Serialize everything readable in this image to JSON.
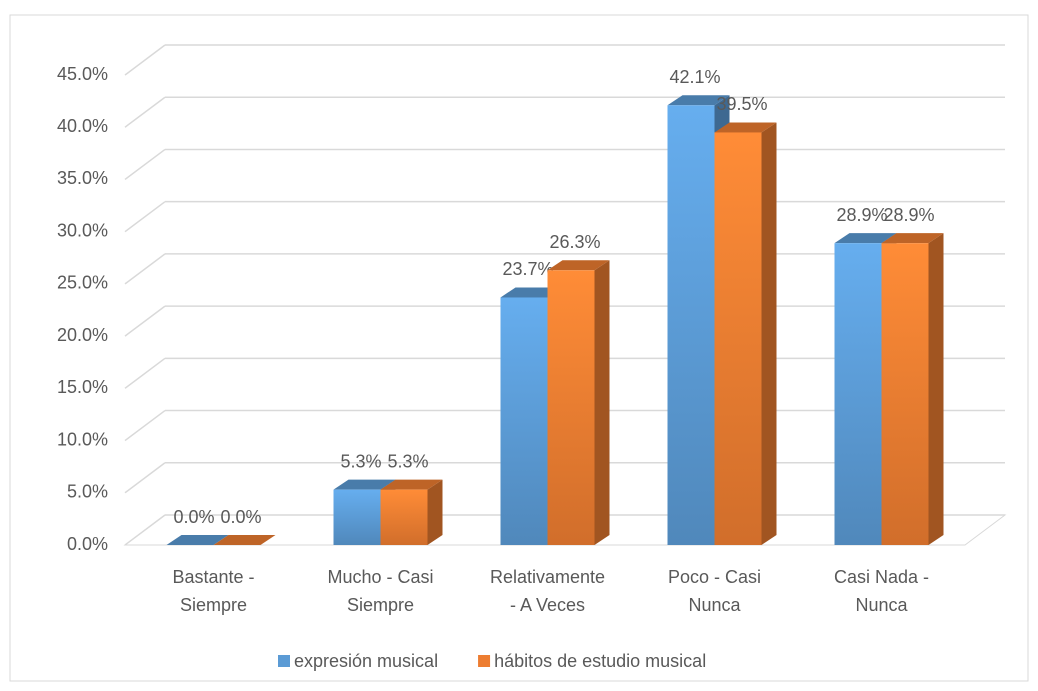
{
  "chart_data": {
    "type": "bar3d",
    "categories": [
      [
        "Bastante -",
        "Siempre"
      ],
      [
        "Mucho  - Casi",
        "Siempre"
      ],
      [
        "Relativamente",
        "- A Veces"
      ],
      [
        "Poco  - Casi",
        "Nunca"
      ],
      [
        "Casi Nada -",
        "Nunca"
      ]
    ],
    "series": [
      {
        "name": "expresión musical",
        "color": "#5b9bd5",
        "values": [
          0.0,
          5.3,
          23.7,
          42.1,
          28.9
        ],
        "value_labels": [
          "0.0%",
          "5.3%",
          "23.7%",
          "42.1%",
          "28.9%"
        ]
      },
      {
        "name": "hábitos de estudio musical",
        "color": "#ed7d31",
        "values": [
          0.0,
          5.3,
          26.3,
          39.5,
          28.9
        ],
        "value_labels": [
          "0.0%",
          "5.3%",
          "26.3%",
          "39.5%",
          "28.9%"
        ]
      }
    ],
    "ylim": [
      0,
      45
    ],
    "yticks": [
      {
        "value": 0,
        "label": "0.0%"
      },
      {
        "value": 5,
        "label": "5.0%"
      },
      {
        "value": 10,
        "label": "10.0%"
      },
      {
        "value": 15,
        "label": "15.0%"
      },
      {
        "value": 20,
        "label": "20.0%"
      },
      {
        "value": 25,
        "label": "25.0%"
      },
      {
        "value": 30,
        "label": "30.0%"
      },
      {
        "value": 35,
        "label": "35.0%"
      },
      {
        "value": 40,
        "label": "40.0%"
      },
      {
        "value": 45,
        "label": "45.0%"
      }
    ],
    "grid": true,
    "legend": "bottom"
  }
}
